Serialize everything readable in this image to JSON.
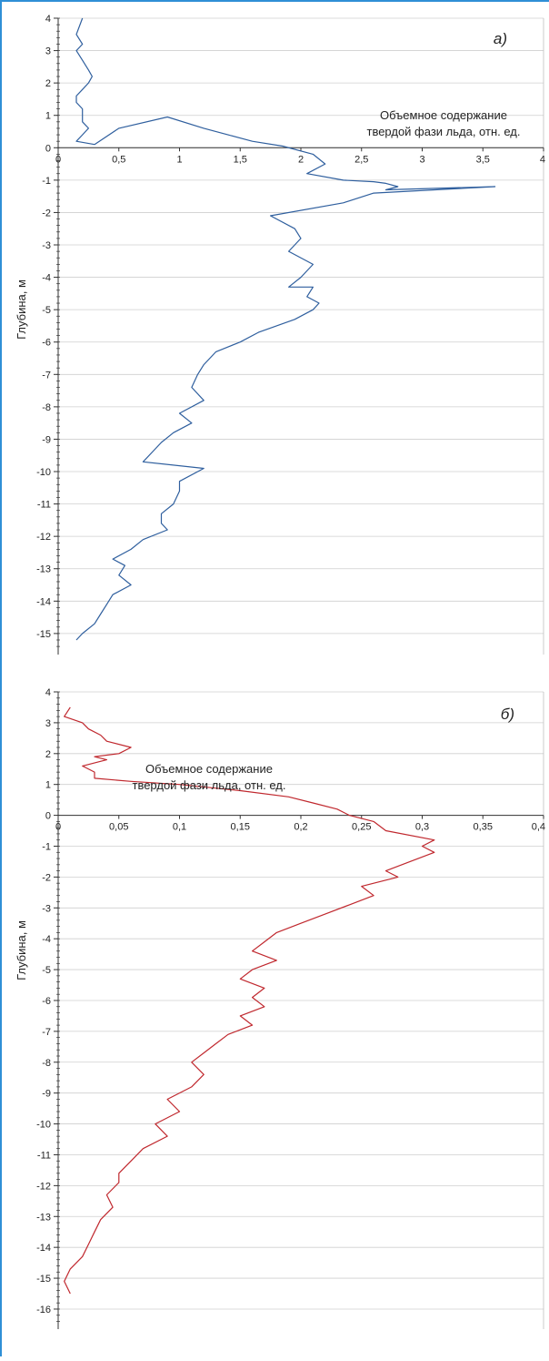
{
  "chart_data": [
    {
      "type": "line",
      "panel_label": "а)",
      "annotation": [
        "Объемное содержание",
        "твердой фази льда, отн. ед."
      ],
      "ylabel": "Глубина, м",
      "xlabel": "",
      "xlim": [
        0,
        4
      ],
      "ylim": [
        -16,
        4
      ],
      "x_ticks": [
        "0",
        "0,5",
        "1",
        "1,5",
        "2",
        "2,5",
        "3",
        "3,5",
        "4"
      ],
      "y_ticks": [
        "4",
        "3",
        "2",
        "1",
        "0",
        "-1",
        "-2",
        "-3",
        "-4",
        "-5",
        "-6",
        "-7",
        "-8",
        "-9",
        "-10",
        "-11",
        "-12",
        "-13",
        "-14",
        "-15"
      ],
      "grid": true,
      "line_color": "#2f5f9e",
      "series": [
        {
          "x": [
            0.2,
            0.15,
            0.2,
            0.15,
            0.2,
            0.25,
            0.28,
            0.25,
            0.2,
            0.15,
            0.15,
            0.2,
            0.2,
            0.2,
            0.25,
            0.2,
            0.15,
            0.3,
            0.5,
            0.9,
            1.2,
            1.4,
            1.6,
            1.85,
            2.1,
            2.2,
            2.05,
            2.35,
            2.6,
            2.7,
            2.8,
            2.7,
            3.6,
            2.6,
            2.35,
            1.75,
            1.95,
            2.0,
            1.9,
            2.1,
            2.0,
            1.9,
            2.1,
            2.05,
            2.15,
            2.1,
            1.95,
            1.8,
            1.65,
            1.5,
            1.3,
            1.2,
            1.15,
            1.1,
            1.2,
            1.0,
            1.1,
            0.95,
            0.85,
            0.8,
            0.7,
            1.2,
            1.0,
            1.0,
            0.95,
            0.85,
            0.85,
            0.9,
            0.7,
            0.6,
            0.45,
            0.55,
            0.5,
            0.6,
            0.45,
            0.4,
            0.35,
            0.3,
            0.2,
            0.15
          ],
          "y": [
            4.0,
            3.5,
            3.2,
            3.0,
            2.7,
            2.4,
            2.2,
            2.0,
            1.8,
            1.6,
            1.4,
            1.2,
            1.0,
            0.8,
            0.6,
            0.4,
            0.2,
            0.1,
            0.6,
            0.95,
            0.6,
            0.4,
            0.2,
            0.05,
            -0.2,
            -0.5,
            -0.8,
            -1.0,
            -1.05,
            -1.1,
            -1.2,
            -1.3,
            -1.2,
            -1.4,
            -1.7,
            -2.1,
            -2.5,
            -2.8,
            -3.2,
            -3.6,
            -4.0,
            -4.3,
            -4.3,
            -4.6,
            -4.8,
            -5.0,
            -5.3,
            -5.5,
            -5.7,
            -6.0,
            -6.3,
            -6.7,
            -7.0,
            -7.4,
            -7.8,
            -8.2,
            -8.5,
            -8.8,
            -9.1,
            -9.3,
            -9.7,
            -9.9,
            -10.3,
            -10.6,
            -11.0,
            -11.3,
            -11.6,
            -11.8,
            -12.1,
            -12.4,
            -12.7,
            -12.9,
            -13.2,
            -13.5,
            -13.8,
            -14.1,
            -14.4,
            -14.7,
            -15.0,
            -15.2
          ]
        }
      ]
    },
    {
      "type": "line",
      "panel_label": "б)",
      "annotation": [
        "Объемное содержание",
        "твердой фази льда, отн. ед."
      ],
      "ylabel": "Глубина, м",
      "xlabel": "",
      "xlim": [
        0,
        0.4
      ],
      "ylim": [
        -16,
        4
      ],
      "x_ticks": [
        "0",
        "0,05",
        "0,1",
        "0,15",
        "0,2",
        "0,25",
        "0,3",
        "0,35",
        "0,4"
      ],
      "y_ticks": [
        "4",
        "3",
        "2",
        "1",
        "0",
        "-1",
        "-2",
        "-3",
        "-4",
        "-5",
        "-6",
        "-7",
        "-8",
        "-9",
        "-10",
        "-11",
        "-12",
        "-13",
        "-14",
        "-15",
        "-16"
      ],
      "grid": true,
      "line_color": "#c0282e",
      "series": [
        {
          "x": [
            0.01,
            0.005,
            0.02,
            0.025,
            0.035,
            0.04,
            0.06,
            0.05,
            0.03,
            0.04,
            0.02,
            0.03,
            0.03,
            0.06,
            0.1,
            0.15,
            0.19,
            0.21,
            0.23,
            0.24,
            0.26,
            0.27,
            0.31,
            0.3,
            0.31,
            0.29,
            0.27,
            0.28,
            0.25,
            0.26,
            0.24,
            0.22,
            0.2,
            0.18,
            0.17,
            0.16,
            0.18,
            0.16,
            0.15,
            0.17,
            0.16,
            0.17,
            0.15,
            0.16,
            0.14,
            0.13,
            0.12,
            0.11,
            0.12,
            0.11,
            0.09,
            0.1,
            0.08,
            0.09,
            0.07,
            0.06,
            0.05,
            0.05,
            0.04,
            0.045,
            0.035,
            0.03,
            0.025,
            0.02,
            0.01,
            0.005,
            0.01
          ],
          "y": [
            3.5,
            3.2,
            3.0,
            2.8,
            2.6,
            2.4,
            2.2,
            2.0,
            1.9,
            1.8,
            1.6,
            1.4,
            1.2,
            1.1,
            1.0,
            0.8,
            0.6,
            0.4,
            0.2,
            0.0,
            -0.2,
            -0.5,
            -0.8,
            -1.0,
            -1.2,
            -1.5,
            -1.8,
            -2.0,
            -2.3,
            -2.6,
            -2.9,
            -3.2,
            -3.5,
            -3.8,
            -4.1,
            -4.4,
            -4.7,
            -5.0,
            -5.3,
            -5.6,
            -5.9,
            -6.2,
            -6.5,
            -6.8,
            -7.1,
            -7.4,
            -7.7,
            -8.0,
            -8.4,
            -8.8,
            -9.2,
            -9.6,
            -10.0,
            -10.4,
            -10.8,
            -11.2,
            -11.6,
            -11.9,
            -12.3,
            -12.7,
            -13.1,
            -13.5,
            -13.9,
            -14.3,
            -14.7,
            -15.1,
            -15.5
          ]
        }
      ]
    }
  ]
}
